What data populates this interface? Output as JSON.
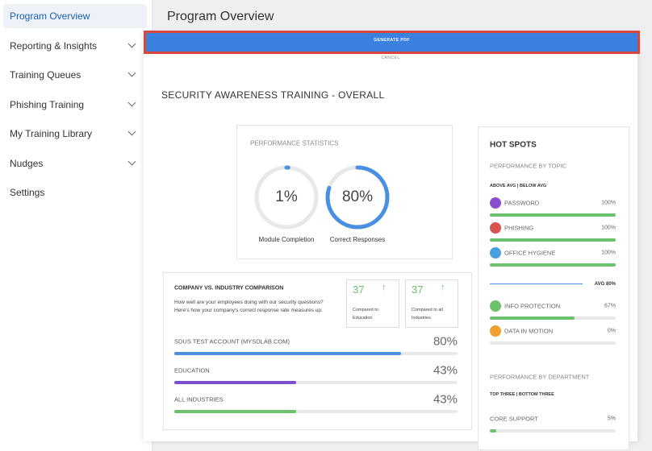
{
  "sidebar": {
    "items": [
      "Program Overview",
      "Reporting & Insights",
      "Training Queues",
      "Phishing Training",
      "My Training Library",
      "Nudges",
      "Settings"
    ]
  },
  "header": {
    "title": "Program Overview"
  },
  "modal": {
    "generate_button": "GENERATE PDF",
    "cancel": "CANCEL"
  },
  "report": {
    "title": "SECURITY AWARENESS TRAINING - OVERALL",
    "performance": {
      "title": "PERFORMANCE STATISTICS",
      "stats": [
        {
          "value": 1,
          "label": "1%",
          "caption": "Module Completion"
        },
        {
          "value": 80,
          "label": "80%",
          "caption": "Correct Responses"
        }
      ]
    },
    "comparison": {
      "title": "COMPANY VS. INDUSTRY COMPARISON",
      "description": "How well are your employees doing with our security questions? Here's how your company's correct response rate measures up.",
      "cards": [
        {
          "value": 37,
          "caption": "Compared to Education"
        },
        {
          "value": 37,
          "caption": "Compared to all Industries"
        }
      ],
      "rows": [
        {
          "name": "SDUS TEST ACCOUNT (MYSDLAB.COM)",
          "value": 80,
          "label": "80%",
          "color": "#4a8fe0"
        },
        {
          "name": "EDUCATION",
          "value": 43,
          "label": "43%",
          "color": "#7b4fcf"
        },
        {
          "name": "ALL INDUSTRIES",
          "value": 43,
          "label": "43%",
          "color": "#6cc26c"
        }
      ]
    },
    "hot_spots": {
      "title": "HOT SPOTS",
      "by_topic": "PERFORMANCE BY TOPIC",
      "topic_filter": "ABOVE AVG | BELOW AVG",
      "above": [
        {
          "name": "PASSWORD",
          "value": 100,
          "label": "100%",
          "color": "#8a4fd0"
        },
        {
          "name": "PHISHING",
          "value": 100,
          "label": "100%",
          "color": "#d9534f"
        },
        {
          "name": "OFFICE HYGIENE",
          "value": 100,
          "label": "100%",
          "color": "#4a9fe0"
        }
      ],
      "average": "AVG 80%",
      "below": [
        {
          "name": "INFO PROTECTION",
          "value": 67,
          "label": "67%",
          "color": "#6cc26c"
        },
        {
          "name": "DATA IN MOTION",
          "value": 0,
          "label": "0%",
          "color": "#f0a030"
        }
      ],
      "by_department": "PERFORMANCE BY DEPARTMENT",
      "department_filter": "TOP THREE | BOTTOM THREE",
      "departments": [
        {
          "name": "CORE SUPPORT",
          "value": 5,
          "label": "5%",
          "color": "#6cc26c"
        }
      ]
    }
  }
}
